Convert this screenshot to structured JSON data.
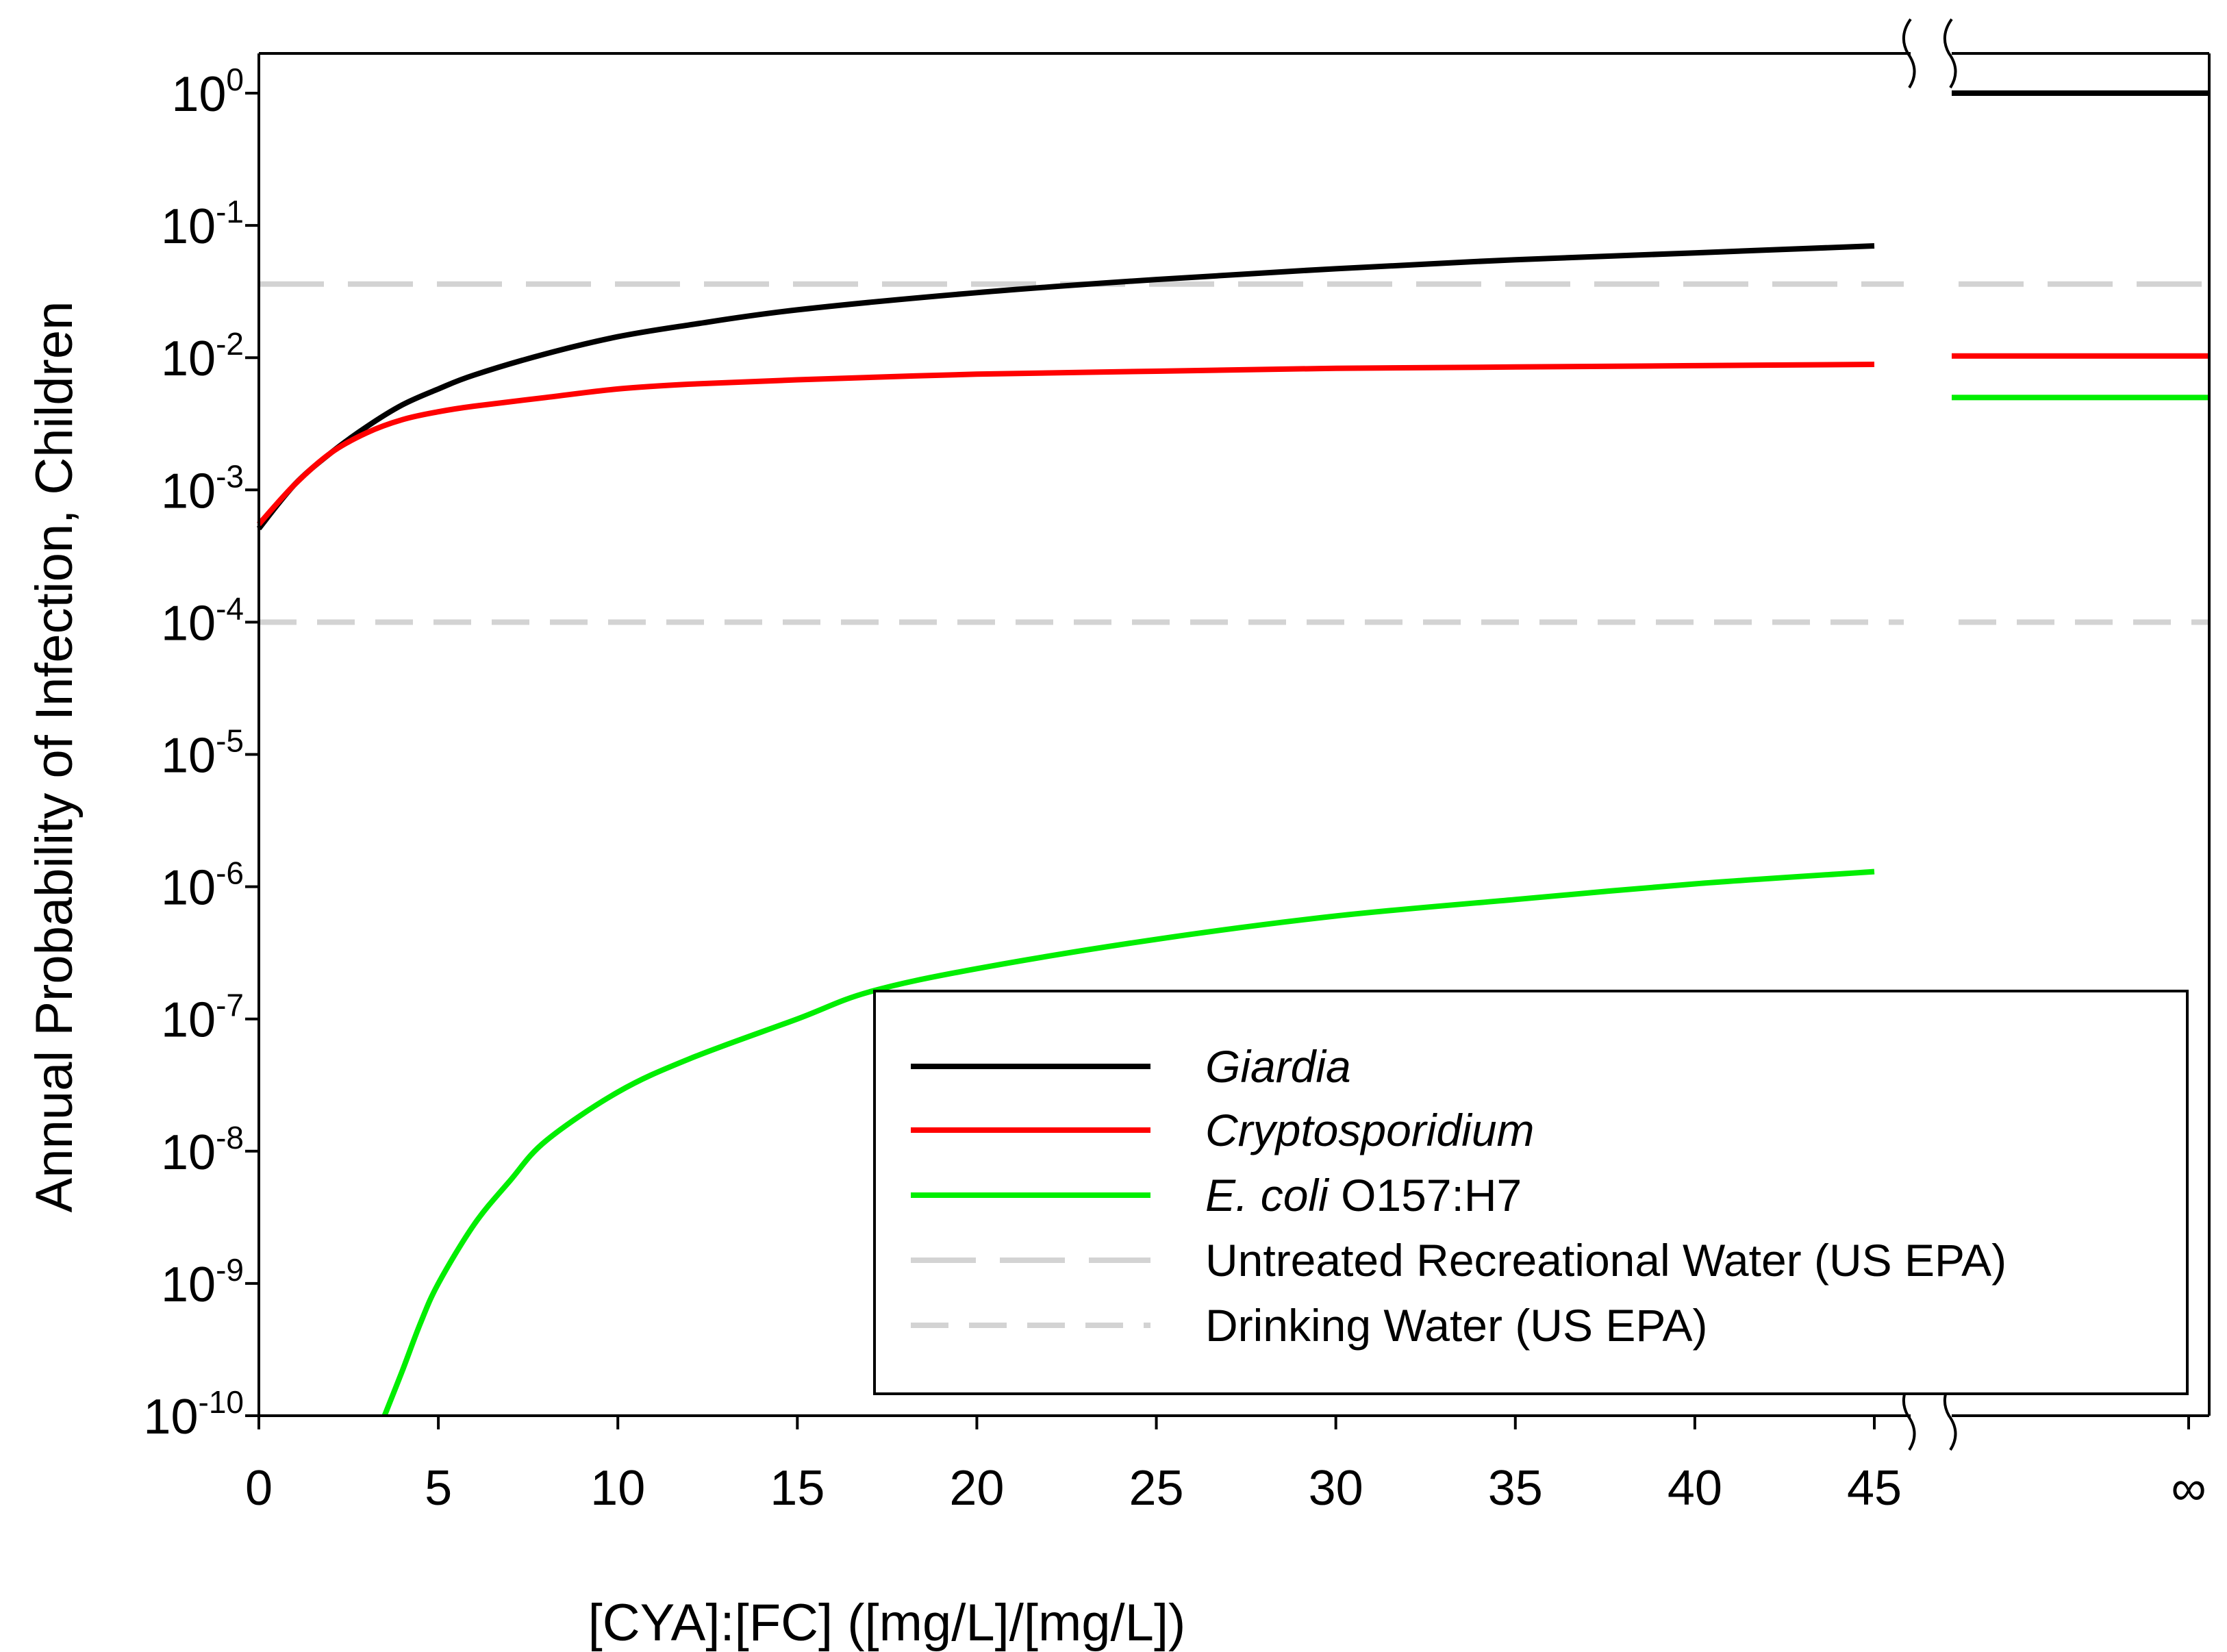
{
  "chart_data": {
    "type": "line",
    "title": "",
    "xlabel": "[CYA]:[FC] ([mg/L]/[mg/L])",
    "ylabel": "Annual Probability of Infection, Children",
    "yscale": "log",
    "ylim": [
      1e-10,
      2
    ],
    "xlim": [
      0,
      45
    ],
    "x_ticks": [
      "0",
      "5",
      "10",
      "15",
      "20",
      "25",
      "30",
      "35",
      "40",
      "45"
    ],
    "x_infinity_label": "∞",
    "y_ticks": [
      {
        "base": "10",
        "exp": "0",
        "value": 1
      },
      {
        "base": "10",
        "exp": "-1",
        "value": 0.1
      },
      {
        "base": "10",
        "exp": "-2",
        "value": 0.01
      },
      {
        "base": "10",
        "exp": "-3",
        "value": 0.001
      },
      {
        "base": "10",
        "exp": "-4",
        "value": 0.0001
      },
      {
        "base": "10",
        "exp": "-5",
        "value": 1e-05
      },
      {
        "base": "10",
        "exp": "-6",
        "value": 1e-06
      },
      {
        "base": "10",
        "exp": "-7",
        "value": 1e-07
      },
      {
        "base": "10",
        "exp": "-8",
        "value": 1e-08
      },
      {
        "base": "10",
        "exp": "-9",
        "value": 1e-09
      },
      {
        "base": "10",
        "exp": "-10",
        "value": 1e-10
      }
    ],
    "axis_break": "between 45 and ∞",
    "series": [
      {
        "name": "Giardia",
        "color": "#000000",
        "x": [
          0,
          1,
          2,
          3,
          4,
          5,
          6,
          8,
          10,
          12,
          15,
          20,
          25,
          30,
          35,
          40,
          45
        ],
        "y": [
          0.00051,
          0.0011,
          0.0019,
          0.003,
          0.0044,
          0.0058,
          0.0074,
          0.0107,
          0.0144,
          0.0177,
          0.023,
          0.031,
          0.039,
          0.047,
          0.055,
          0.062,
          0.07
        ],
        "y_at_infinity": 1.0
      },
      {
        "name": "Cryptosporidium",
        "color": "#ff0000",
        "x": [
          0,
          1,
          2,
          3,
          4,
          5,
          6,
          8,
          10,
          12,
          15,
          20,
          25,
          30,
          35,
          40,
          45
        ],
        "y": [
          0.00055,
          0.0011,
          0.0019,
          0.0027,
          0.0034,
          0.0039,
          0.0043,
          0.005,
          0.0058,
          0.0063,
          0.0068,
          0.0075,
          0.0079,
          0.0083,
          0.0085,
          0.0087,
          0.0089
        ],
        "y_at_infinity": 0.0103
      },
      {
        "name": "E. coli O157:H7",
        "label_italic": "E. coli",
        "label_rest": " O157:H7",
        "color": "#00ee00",
        "x": [
          3.5,
          4,
          4.5,
          5,
          6,
          7,
          8,
          10,
          12,
          15,
          17,
          20,
          25,
          30,
          35,
          40,
          45
        ],
        "y": [
          1e-10,
          2.2e-10,
          5e-10,
          1e-09,
          2.8e-09,
          6e-09,
          1.2e-08,
          2.8e-08,
          5e-08,
          1e-07,
          1.6e-07,
          2.4e-07,
          4e-07,
          6e-07,
          8e-07,
          1.05e-06,
          1.3e-06
        ],
        "y_at_infinity": 0.005
      }
    ],
    "reference_lines": [
      {
        "name": "Untreated Recreational Water (US EPA)",
        "value": 0.036,
        "color": "#d3d3d3",
        "style": "long-dash"
      },
      {
        "name": "Drinking Water (US EPA)",
        "value": 0.0001,
        "color": "#d3d3d3",
        "style": "short-dash"
      }
    ],
    "legend": {
      "position": "bottom-right"
    }
  }
}
